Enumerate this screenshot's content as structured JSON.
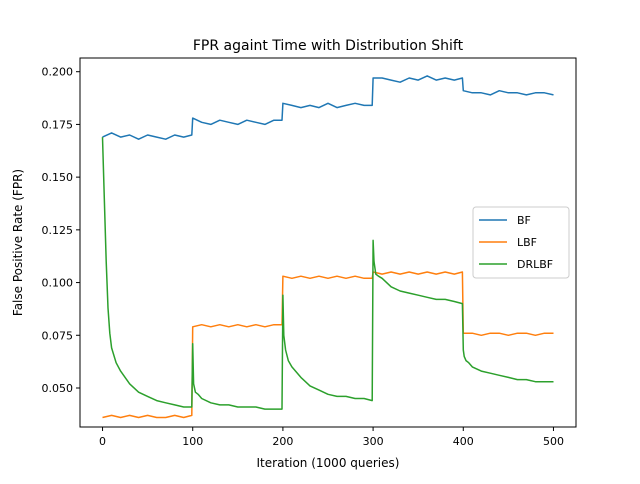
{
  "chart_data": {
    "type": "line",
    "title": "FPR againt Time with Distribution Shift",
    "xlabel": "Iteration (1000 queries)",
    "ylabel": "False Positive Rate (FPR)",
    "xlim": [
      -25,
      525
    ],
    "ylim": [
      0.0315,
      0.2065
    ],
    "xticks": [
      0,
      100,
      200,
      300,
      400,
      500
    ],
    "xtick_labels": [
      "0",
      "100",
      "200",
      "300",
      "400",
      "500"
    ],
    "yticks": [
      0.05,
      0.075,
      0.1,
      0.125,
      0.15,
      0.175,
      0.2
    ],
    "ytick_labels": [
      "0.050",
      "0.075",
      "0.100",
      "0.125",
      "0.150",
      "0.175",
      "0.200"
    ],
    "grid": false,
    "legend_position": "center-right",
    "series": [
      {
        "name": "BF",
        "color": "#1f77b4",
        "x": [
          0,
          10,
          20,
          30,
          40,
          50,
          60,
          70,
          80,
          90,
          99,
          100,
          110,
          120,
          130,
          140,
          150,
          160,
          170,
          180,
          190,
          199,
          200,
          210,
          220,
          230,
          240,
          250,
          260,
          270,
          280,
          290,
          299,
          300,
          310,
          320,
          330,
          340,
          350,
          360,
          370,
          380,
          390,
          399,
          400,
          410,
          420,
          430,
          440,
          450,
          460,
          470,
          480,
          490,
          500
        ],
        "y": [
          0.169,
          0.171,
          0.169,
          0.17,
          0.168,
          0.17,
          0.169,
          0.168,
          0.17,
          0.169,
          0.17,
          0.178,
          0.176,
          0.175,
          0.177,
          0.176,
          0.175,
          0.177,
          0.176,
          0.175,
          0.177,
          0.177,
          0.185,
          0.184,
          0.183,
          0.184,
          0.183,
          0.185,
          0.183,
          0.184,
          0.185,
          0.184,
          0.184,
          0.197,
          0.197,
          0.196,
          0.195,
          0.197,
          0.196,
          0.198,
          0.196,
          0.197,
          0.196,
          0.197,
          0.191,
          0.19,
          0.19,
          0.189,
          0.191,
          0.19,
          0.19,
          0.189,
          0.19,
          0.19,
          0.189
        ]
      },
      {
        "name": "LBF",
        "color": "#ff7f0e",
        "x": [
          0,
          10,
          20,
          30,
          40,
          50,
          60,
          70,
          80,
          90,
          99,
          100,
          110,
          120,
          130,
          140,
          150,
          160,
          170,
          180,
          190,
          199,
          200,
          210,
          220,
          230,
          240,
          250,
          260,
          270,
          280,
          290,
          299,
          300,
          310,
          320,
          330,
          340,
          350,
          360,
          370,
          380,
          390,
          399,
          400,
          410,
          420,
          430,
          440,
          450,
          460,
          470,
          480,
          490,
          500
        ],
        "y": [
          0.036,
          0.037,
          0.036,
          0.037,
          0.036,
          0.037,
          0.036,
          0.036,
          0.037,
          0.036,
          0.037,
          0.079,
          0.08,
          0.079,
          0.08,
          0.079,
          0.08,
          0.079,
          0.08,
          0.079,
          0.08,
          0.08,
          0.103,
          0.102,
          0.103,
          0.102,
          0.103,
          0.102,
          0.103,
          0.102,
          0.103,
          0.102,
          0.102,
          0.105,
          0.104,
          0.105,
          0.104,
          0.105,
          0.104,
          0.105,
          0.104,
          0.105,
          0.104,
          0.105,
          0.076,
          0.076,
          0.075,
          0.076,
          0.076,
          0.075,
          0.076,
          0.076,
          0.075,
          0.076,
          0.076
        ]
      },
      {
        "name": "DRLBF",
        "color": "#2ca02c",
        "x": [
          0,
          2,
          4,
          6,
          8,
          10,
          15,
          20,
          25,
          30,
          40,
          50,
          60,
          70,
          80,
          90,
          99,
          100,
          101,
          103,
          106,
          110,
          120,
          130,
          140,
          150,
          160,
          170,
          180,
          190,
          199,
          200,
          201,
          203,
          206,
          210,
          220,
          230,
          240,
          250,
          260,
          270,
          280,
          290,
          299,
          300,
          301,
          303,
          306,
          310,
          320,
          330,
          340,
          350,
          360,
          370,
          380,
          390,
          399,
          400,
          401,
          403,
          406,
          410,
          420,
          430,
          440,
          450,
          460,
          470,
          480,
          490,
          500
        ],
        "y": [
          0.169,
          0.14,
          0.11,
          0.088,
          0.076,
          0.069,
          0.062,
          0.058,
          0.055,
          0.052,
          0.048,
          0.046,
          0.044,
          0.043,
          0.042,
          0.041,
          0.041,
          0.071,
          0.052,
          0.048,
          0.047,
          0.045,
          0.043,
          0.042,
          0.042,
          0.041,
          0.041,
          0.041,
          0.04,
          0.04,
          0.04,
          0.094,
          0.075,
          0.068,
          0.063,
          0.06,
          0.055,
          0.051,
          0.049,
          0.047,
          0.046,
          0.046,
          0.045,
          0.045,
          0.044,
          0.12,
          0.11,
          0.104,
          0.103,
          0.102,
          0.098,
          0.096,
          0.095,
          0.094,
          0.093,
          0.092,
          0.092,
          0.091,
          0.09,
          0.068,
          0.065,
          0.063,
          0.062,
          0.06,
          0.058,
          0.057,
          0.056,
          0.055,
          0.054,
          0.054,
          0.053,
          0.053,
          0.053
        ]
      }
    ]
  }
}
